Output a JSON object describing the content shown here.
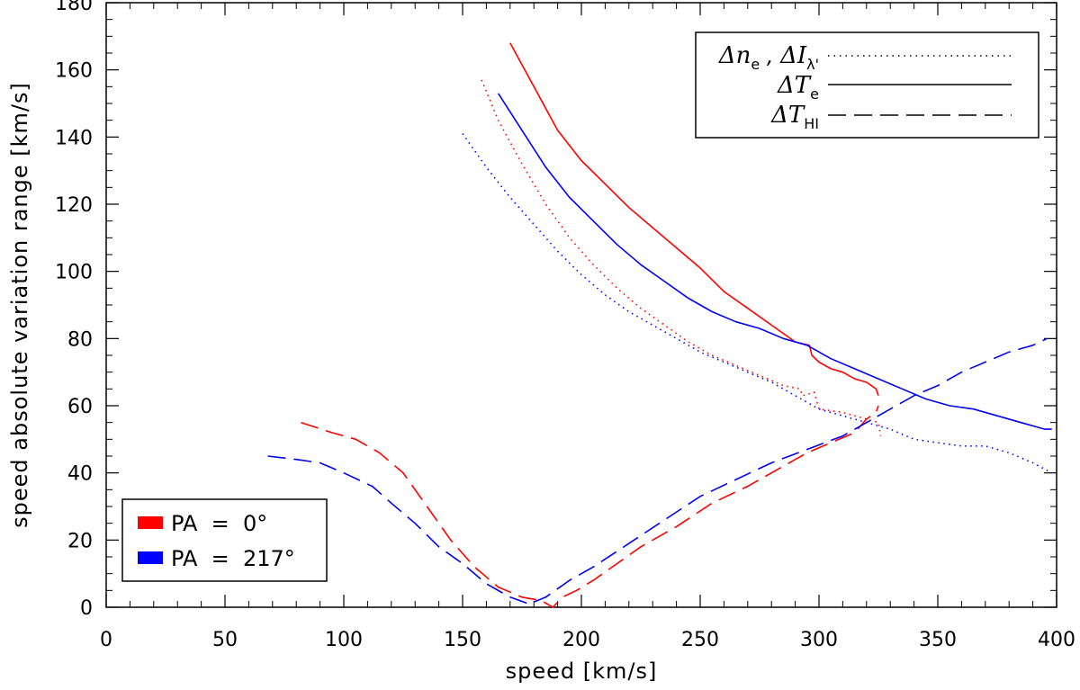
{
  "chart_data": {
    "type": "line",
    "xlabel": "speed [km/s]",
    "ylabel": "speed absolute variation range [km/s]",
    "xlim": [
      0,
      400
    ],
    "ylim": [
      0,
      180
    ],
    "xticks": [
      0,
      50,
      100,
      150,
      200,
      250,
      300,
      350,
      400
    ],
    "yticks": [
      0,
      20,
      40,
      60,
      80,
      100,
      120,
      140,
      160,
      180
    ],
    "xtick_labels": [
      "0",
      "50",
      "100",
      "150",
      "200",
      "250",
      "300",
      "350",
      "400"
    ],
    "ytick_labels": [
      "0",
      "20",
      "40",
      "60",
      "80",
      "100",
      "120",
      "140",
      "160",
      "180"
    ],
    "style_legend": {
      "position": "top-right",
      "entries": [
        {
          "symbol": "Δn",
          "sub": "e",
          "sep": " , ",
          "symbol2": "ΔI",
          "sub2": "λ'",
          "line_style": "dotted"
        },
        {
          "symbol": "ΔT",
          "sub": "e",
          "line_style": "solid"
        },
        {
          "symbol": "ΔT",
          "sub": "HI",
          "line_style": "dashed"
        }
      ]
    },
    "color_legend": {
      "position": "bottom-left",
      "entries": [
        {
          "label": "PA  =  0°",
          "color": "#ff0000"
        },
        {
          "label": "PA  =  217°",
          "color": "#0000ff"
        }
      ]
    },
    "series": [
      {
        "name": "ΔTe PA=0°",
        "color": "#ff0000",
        "style": "solid",
        "x": [
          170,
          180,
          190,
          200,
          210,
          220,
          230,
          240,
          250,
          260,
          270,
          280,
          290,
          296,
          297,
          300,
          305,
          310,
          315,
          320,
          324,
          325
        ],
        "y": [
          168,
          155,
          142,
          133,
          126,
          119,
          113,
          107,
          101,
          94,
          89,
          84,
          79,
          78,
          75,
          73,
          71,
          70,
          68,
          67,
          65,
          63
        ]
      },
      {
        "name": "ΔTe PA=217°",
        "color": "#0000ff",
        "style": "solid",
        "x": [
          165,
          175,
          185,
          195,
          205,
          215,
          225,
          235,
          245,
          255,
          265,
          275,
          285,
          295,
          305,
          315,
          325,
          335,
          345,
          355,
          365,
          375,
          385,
          390,
          395,
          398
        ],
        "y": [
          153,
          142,
          131,
          122,
          115,
          108,
          102,
          97,
          92,
          88,
          85,
          83,
          80,
          78,
          74,
          71,
          68,
          65,
          62,
          60,
          59,
          57,
          55,
          54,
          53,
          53
        ]
      },
      {
        "name": "Δne PA=0°",
        "color": "#ff0000",
        "style": "dotted",
        "x": [
          158,
          165,
          175,
          185,
          195,
          205,
          215,
          225,
          235,
          245,
          255,
          265,
          275,
          285,
          292,
          293,
          298,
          300,
          310,
          320,
          325,
          326
        ],
        "y": [
          157,
          145,
          132,
          120,
          110,
          102,
          95,
          89,
          84,
          79,
          75,
          72,
          69,
          66,
          65,
          63,
          64,
          59,
          58,
          56,
          55,
          51
        ]
      },
      {
        "name": "Δne PA=217°",
        "color": "#0000ff",
        "style": "dotted",
        "x": [
          150,
          160,
          170,
          180,
          190,
          200,
          210,
          220,
          230,
          240,
          250,
          260,
          270,
          280,
          290,
          300,
          310,
          320,
          330,
          340,
          350,
          360,
          370,
          380,
          390,
          398
        ],
        "y": [
          141,
          131,
          122,
          114,
          106,
          99,
          93,
          88,
          84,
          80,
          76,
          73,
          70,
          67,
          63,
          59,
          57,
          55,
          53,
          50,
          49,
          48,
          48,
          46,
          43,
          40
        ]
      },
      {
        "name": "ΔTHI PA=0°",
        "color": "#ff0000",
        "style": "dashed",
        "x": [
          82,
          95,
          105,
          115,
          125,
          135,
          145,
          155,
          165,
          175,
          183,
          188,
          192,
          198,
          205,
          215,
          225,
          240,
          255,
          270,
          285,
          295,
          305,
          315,
          320,
          324,
          325
        ],
        "y": [
          55,
          52,
          50,
          46,
          40,
          30,
          20,
          12,
          6,
          3,
          2,
          0,
          3,
          5,
          8,
          13,
          18,
          24,
          31,
          36,
          42,
          46,
          49,
          52,
          56,
          58,
          60
        ]
      },
      {
        "name": "ΔTHI PA=217°",
        "color": "#0000ff",
        "style": "dashed",
        "x": [
          68,
          80,
          90,
          100,
          112,
          120,
          130,
          140,
          150,
          160,
          170,
          178,
          185,
          195,
          205,
          220,
          235,
          250,
          265,
          280,
          295,
          310,
          320,
          330,
          340,
          350,
          360,
          370,
          380,
          390,
          396
        ],
        "y": [
          45,
          44,
          43,
          40,
          36,
          31,
          25,
          18,
          13,
          7,
          3,
          1,
          3,
          8,
          12,
          19,
          26,
          33,
          38,
          43,
          47,
          51,
          55,
          59,
          63,
          66,
          70,
          73,
          76,
          78,
          80
        ]
      }
    ]
  }
}
